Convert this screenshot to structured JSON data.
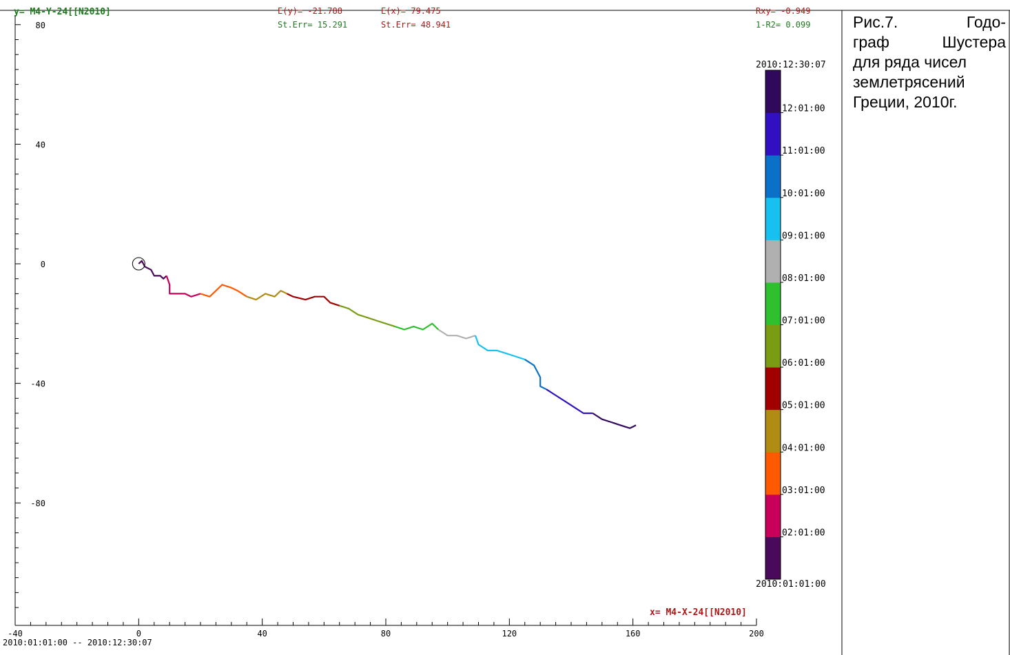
{
  "header": {
    "y_label": "y= M4-Y-24[[N2010]",
    "ey_label": "E(y)= -21.788",
    "ey_err": "St.Err= 15.291",
    "ex_label": "E(x)= 79.475",
    "ex_err": "St.Err= 48.941",
    "rxy": "Rxy= -0.949",
    "r2": "1-R2= 0.099"
  },
  "footer": {
    "x_label": "x= M4-X-24[[N2010]",
    "date_range": "2010:01:01:00 -- 2010:12:30:07"
  },
  "caption": {
    "lines": [
      [
        "Рис.7.",
        "Годо-"
      ],
      [
        "граф",
        "Шустера"
      ],
      [
        "для ряда чисел"
      ],
      [
        "землетрясений"
      ],
      [
        "Греции, 2010г."
      ]
    ]
  },
  "colors": {
    "label_green": "#1e7a1e",
    "label_red": "#b01515",
    "label_darkred": "#8b0000"
  },
  "chart_data": {
    "type": "line",
    "xlim": [
      -40,
      200
    ],
    "ylim": [
      -120,
      85
    ],
    "x_ticks": [
      -40,
      0,
      40,
      80,
      120,
      160,
      200
    ],
    "y_ticks": [
      80,
      40,
      0,
      -40,
      -80
    ],
    "marker_start": [
      0,
      0
    ],
    "colorbar": {
      "top_label": "2010:12:30:07",
      "bottom_label": "2010:01:01:00",
      "ticks": [
        "12:01:00",
        "11:01:00",
        "10:01:00",
        "09:01:00",
        "08:01:00",
        "07:01:00",
        "06:01:00",
        "05:01:00",
        "04:01:00",
        "03:01:00",
        "02:01:00"
      ],
      "colors": [
        "#4a0a5c",
        "#c8005a",
        "#ff5a00",
        "#b08c14",
        "#a00000",
        "#7a9b14",
        "#2ec02e",
        "#b0b0b0",
        "#18c0f0",
        "#0a70c8",
        "#3010c0",
        "#30085c"
      ]
    },
    "series": [
      {
        "color": "#4a0a5c",
        "points": [
          [
            0,
            0
          ],
          [
            1,
            1
          ],
          [
            2,
            -1
          ],
          [
            4,
            -2
          ],
          [
            5,
            -4
          ],
          [
            7,
            -4
          ],
          [
            8,
            -5
          ],
          [
            9,
            -4
          ]
        ]
      },
      {
        "color": "#c8005a",
        "points": [
          [
            9,
            -4
          ],
          [
            10,
            -7
          ],
          [
            10,
            -10
          ],
          [
            13,
            -10
          ],
          [
            15,
            -10
          ],
          [
            17,
            -11
          ],
          [
            20,
            -10
          ]
        ]
      },
      {
        "color": "#ff5a00",
        "points": [
          [
            20,
            -10
          ],
          [
            23,
            -11
          ],
          [
            25,
            -9
          ],
          [
            27,
            -7
          ],
          [
            30,
            -8
          ],
          [
            32,
            -9
          ],
          [
            35,
            -11
          ]
        ]
      },
      {
        "color": "#b08c14",
        "points": [
          [
            35,
            -11
          ],
          [
            38,
            -12
          ],
          [
            41,
            -10
          ],
          [
            44,
            -11
          ],
          [
            46,
            -9
          ],
          [
            48,
            -10
          ]
        ]
      },
      {
        "color": "#a00000",
        "points": [
          [
            48,
            -10
          ],
          [
            50,
            -11
          ],
          [
            54,
            -12
          ],
          [
            57,
            -11
          ],
          [
            60,
            -11
          ],
          [
            62,
            -13
          ],
          [
            65,
            -14
          ]
        ]
      },
      {
        "color": "#7a9b14",
        "points": [
          [
            65,
            -14
          ],
          [
            68,
            -15
          ],
          [
            71,
            -17
          ],
          [
            74,
            -18
          ],
          [
            77,
            -19
          ],
          [
            80,
            -20
          ],
          [
            83,
            -21
          ]
        ]
      },
      {
        "color": "#2ec02e",
        "points": [
          [
            83,
            -21
          ],
          [
            86,
            -22
          ],
          [
            89,
            -21
          ],
          [
            92,
            -22
          ],
          [
            95,
            -20
          ],
          [
            97,
            -22
          ]
        ]
      },
      {
        "color": "#b0b0b0",
        "points": [
          [
            97,
            -22
          ],
          [
            100,
            -24
          ],
          [
            103,
            -24
          ],
          [
            106,
            -25
          ],
          [
            109,
            -24
          ]
        ]
      },
      {
        "color": "#18c0f0",
        "points": [
          [
            109,
            -24
          ],
          [
            110,
            -27
          ],
          [
            113,
            -29
          ],
          [
            116,
            -29
          ],
          [
            119,
            -30
          ],
          [
            122,
            -31
          ],
          [
            125,
            -32
          ]
        ]
      },
      {
        "color": "#0a70c8",
        "points": [
          [
            125,
            -32
          ],
          [
            128,
            -34
          ],
          [
            129,
            -36
          ],
          [
            130,
            -38
          ],
          [
            130,
            -41
          ],
          [
            132,
            -42
          ]
        ]
      },
      {
        "color": "#3010c0",
        "points": [
          [
            132,
            -42
          ],
          [
            135,
            -44
          ],
          [
            138,
            -46
          ],
          [
            141,
            -48
          ],
          [
            144,
            -50
          ],
          [
            147,
            -50
          ]
        ]
      },
      {
        "color": "#30085c",
        "points": [
          [
            147,
            -50
          ],
          [
            150,
            -52
          ],
          [
            153,
            -53
          ],
          [
            156,
            -54
          ],
          [
            159,
            -55
          ],
          [
            161,
            -54
          ]
        ]
      }
    ]
  }
}
